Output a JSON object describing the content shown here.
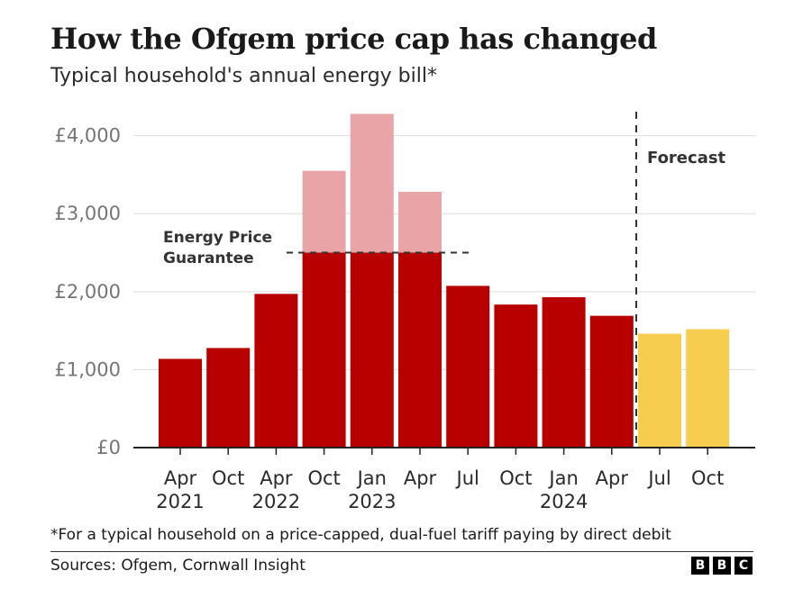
{
  "header": {
    "title": "How the Ofgem price cap has changed",
    "subtitle": "Typical household's annual energy bill*"
  },
  "chart_data": {
    "type": "bar",
    "title": "How the Ofgem price cap has changed",
    "subtitle": "Typical household's annual energy bill*",
    "xlabel": "",
    "ylabel": "",
    "ylim": [
      0,
      4400
    ],
    "yticks": [
      0,
      1000,
      2000,
      3000,
      4000
    ],
    "ytick_labels": [
      "£0",
      "£1,000",
      "£2,000",
      "£3,000",
      "£4,000"
    ],
    "grid": true,
    "categories": [
      "Apr 2021",
      "Oct 2021",
      "Apr 2022",
      "Oct 2022",
      "Jan 2023",
      "Apr 2023",
      "Jul 2023",
      "Oct 2023",
      "Jan 2024",
      "Apr 2024",
      "Jul 2024",
      "Oct 2024"
    ],
    "tick_labels_line1": [
      "Apr",
      "Oct",
      "Apr",
      "Oct",
      "Jan",
      "Apr",
      "Jul",
      "Oct",
      "Jan",
      "Apr",
      "Jul",
      "Oct"
    ],
    "tick_labels_line2": [
      "2021",
      "",
      "2022",
      "",
      "2023",
      "",
      "",
      "",
      "2024",
      "",
      "",
      ""
    ],
    "series": [
      {
        "values": [
          1138,
          1277,
          1971,
          3549,
          4279,
          3280,
          2074,
          1834,
          1928,
          1690,
          1460,
          1518
        ]
      }
    ],
    "energy_price_guarantee": 2500,
    "guarantee_applies_to": [
      "Oct 2022",
      "Jan 2023",
      "Apr 2023"
    ],
    "forecast_categories": [
      "Jul 2024",
      "Oct 2024"
    ],
    "annotations": {
      "guarantee_line1": "Energy Price",
      "guarantee_line2": "Guarantee",
      "forecast": "Forecast"
    },
    "colors": {
      "actual": "#b80000",
      "above_guarantee": "#e8a4a6",
      "forecast": "#f7cd4f",
      "grid": "#dddddd",
      "axis": "#222222",
      "tick_text": "#2a2a2a",
      "y_tick_text": "#757575"
    }
  },
  "footer": {
    "note": "*For a typical household on a price-capped, dual-fuel tariff paying by direct debit",
    "source": "Sources: Ofgem, Cornwall Insight",
    "logo_letters": [
      "B",
      "B",
      "C"
    ]
  }
}
